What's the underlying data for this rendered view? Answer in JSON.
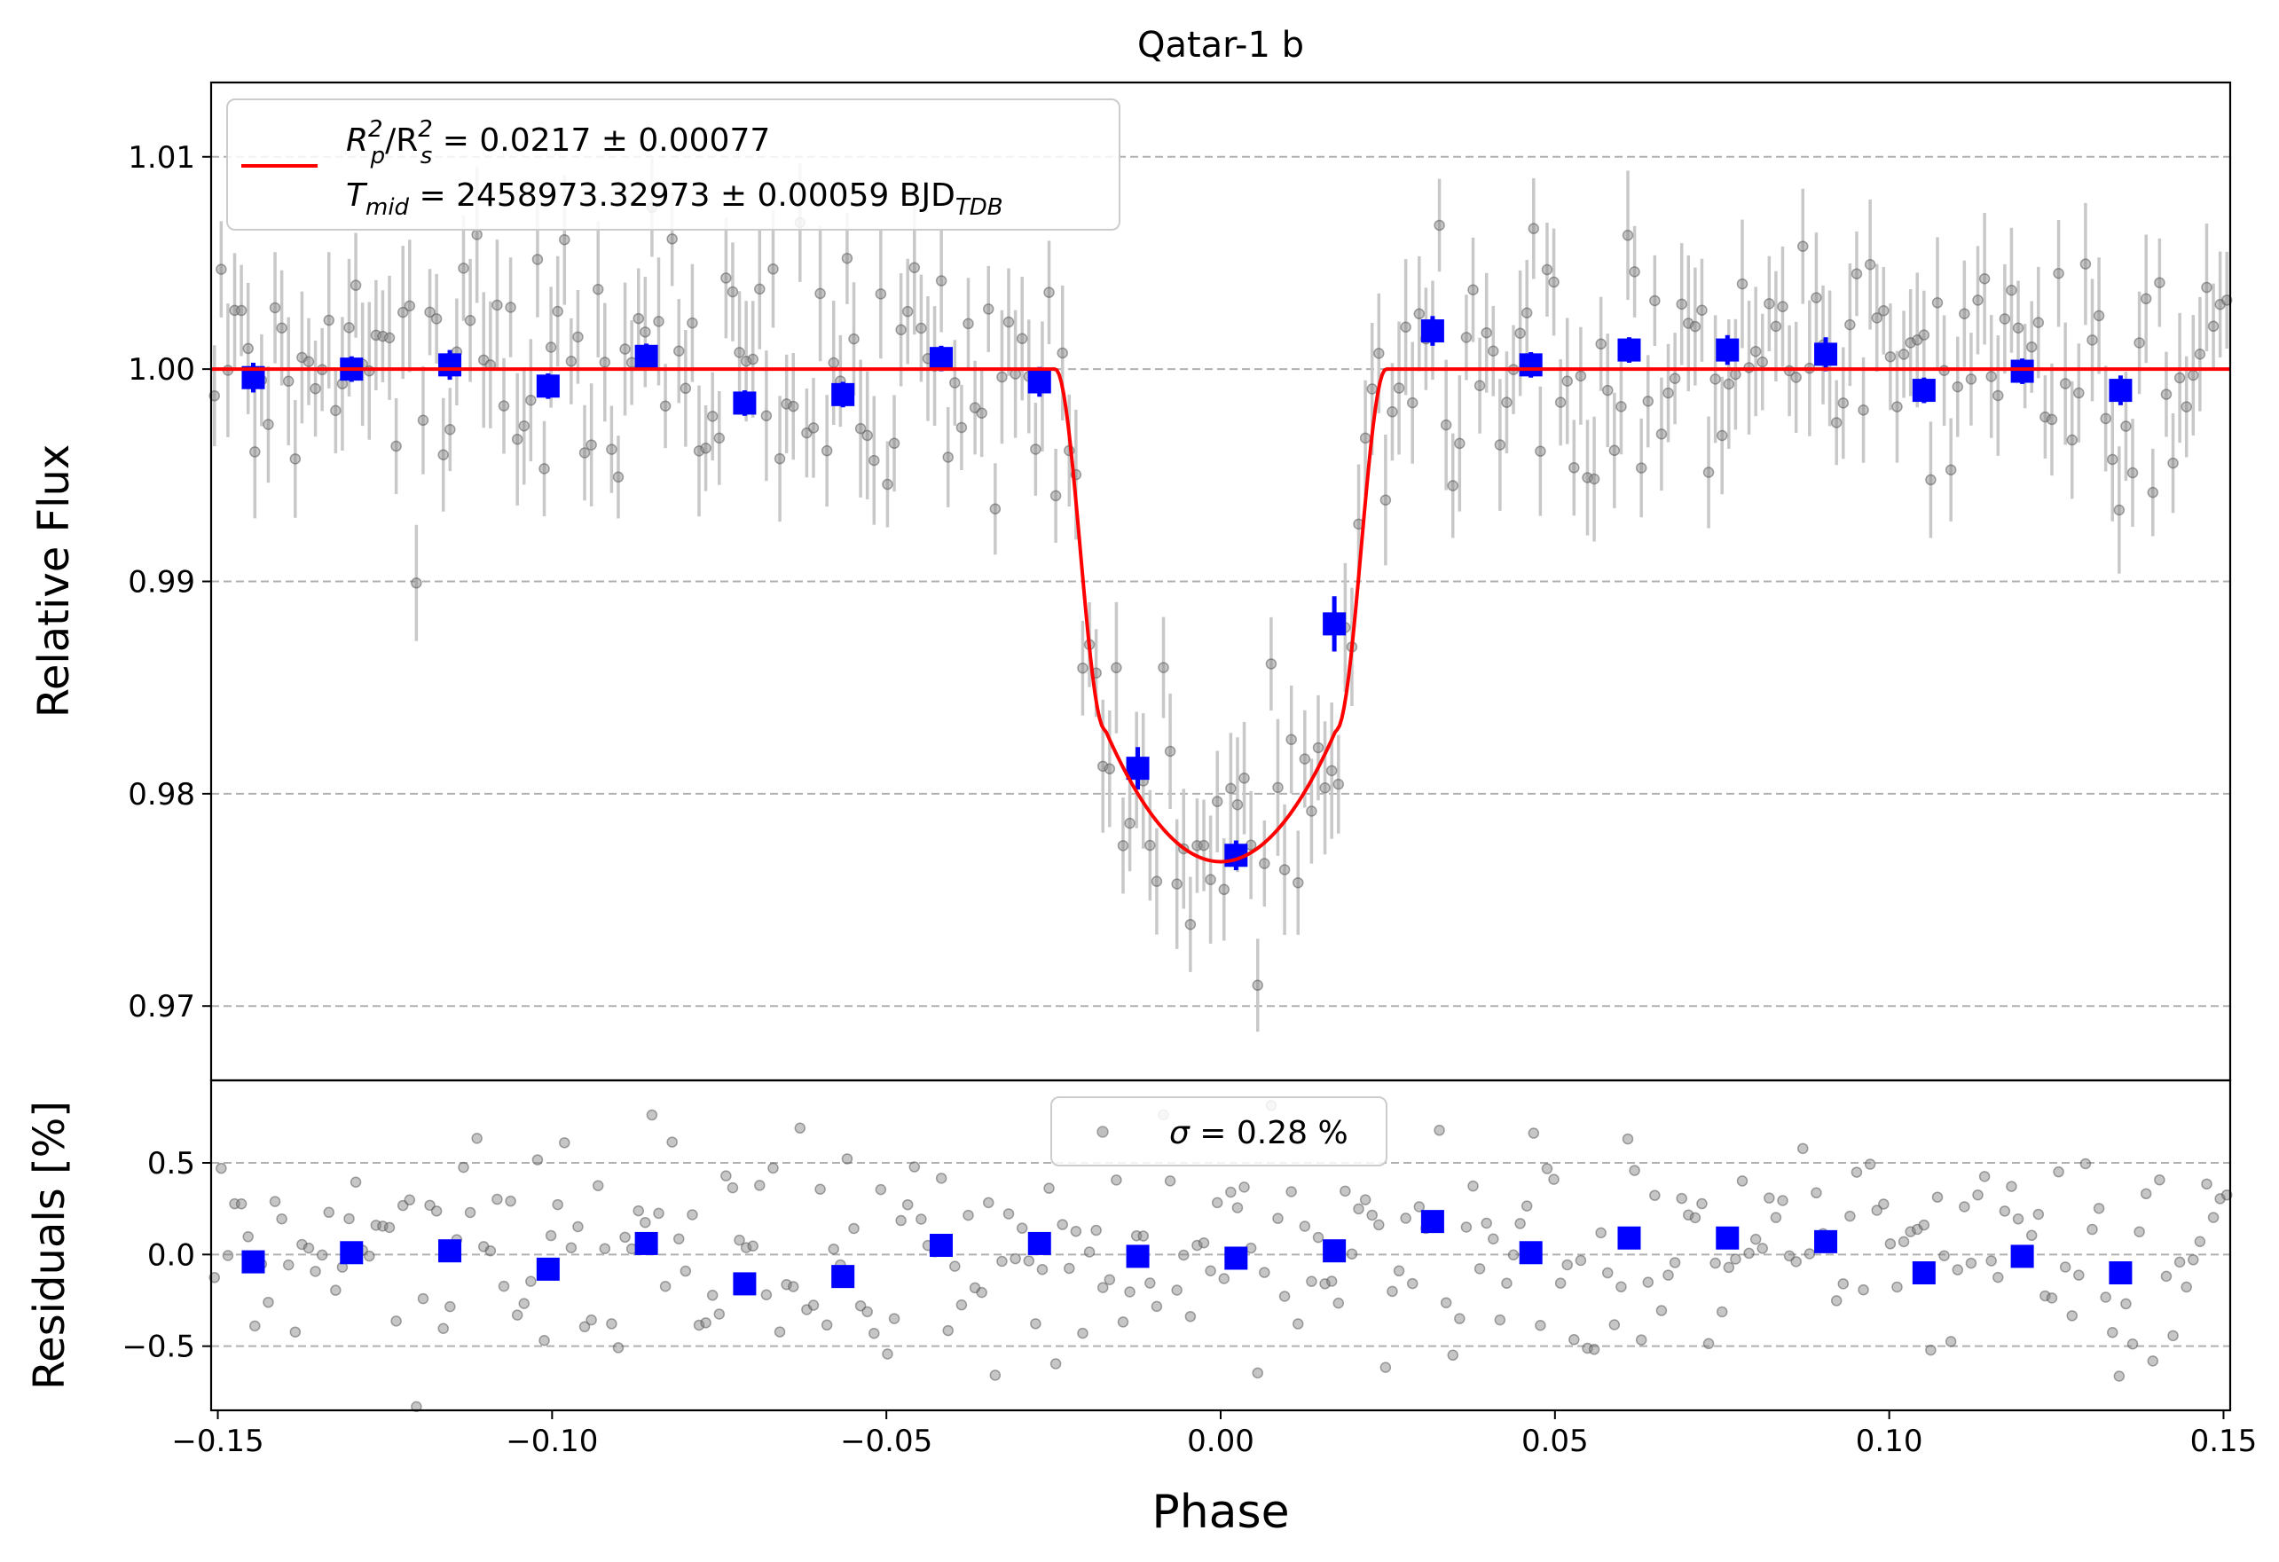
{
  "chart_data": [
    {
      "type": "scatter",
      "title": "Qatar-1 b",
      "xlabel": "",
      "ylabel": "Relative Flux",
      "xlim": [
        -0.151,
        0.151
      ],
      "ylim": [
        0.9665,
        1.0135
      ],
      "yticks": [
        0.97,
        0.98,
        0.99,
        1.0,
        1.01
      ],
      "ytick_labels": [
        "0.97",
        "0.98",
        "0.99",
        "1.00",
        "1.01"
      ],
      "grid": "y-dashed",
      "legend": {
        "placement": "top-left",
        "line1": {
          "prefix": "R",
          "sub1": "p",
          "sup1": "2",
          "mid": "/R",
          "sub2": "s",
          "sup2": "2",
          "suffix": " = 0.0217 ± 0.00077"
        },
        "line2": {
          "prefix": "T",
          "sub1": "mid",
          "mid": " = 2458973.32973 ± 0.00059 BJD",
          "sub2": "TDB"
        }
      },
      "model": {
        "name": "transit model",
        "color": "#ff0000",
        "baseline": 1.0,
        "depth": 0.0232,
        "t14": 0.0495,
        "t23": 0.0345
      },
      "binned": {
        "color": "#0000ff",
        "x": [
          -0.1447,
          -0.13,
          -0.1153,
          -0.1006,
          -0.0859,
          -0.0712,
          -0.0565,
          -0.0418,
          -0.0271,
          -0.0124,
          0.0023,
          0.017,
          0.0317,
          0.0464,
          0.0611,
          0.0758,
          0.0905,
          0.1052,
          0.1199,
          0.1346
        ],
        "y": [
          0.9996,
          1.0,
          1.0002,
          0.9992,
          1.0006,
          0.9984,
          0.9988,
          1.0005,
          0.9994,
          0.9812,
          0.9771,
          0.988,
          1.0018,
          1.0002,
          1.0009,
          1.0009,
          1.0007,
          0.999,
          0.9999,
          0.999
        ],
        "err": [
          0.0007,
          0.0006,
          0.0007,
          0.0006,
          0.0006,
          0.0006,
          0.0006,
          0.0006,
          0.0007,
          0.001,
          0.0007,
          0.0013,
          0.0007,
          0.0006,
          0.0006,
          0.0007,
          0.0008,
          0.0006,
          0.0006,
          0.0007
        ]
      },
      "raw": {
        "color": "#808080",
        "n_points": 300,
        "errorbar_color": "#c8c8c8",
        "typical_err": 0.0026,
        "scatter": 0.0028,
        "x_range": [
          -0.1505,
          0.1505
        ]
      }
    },
    {
      "type": "scatter",
      "xlabel": "Phase",
      "ylabel": "Residuals [%]",
      "xlim": [
        -0.151,
        0.151
      ],
      "ylim": [
        -0.85,
        0.95
      ],
      "yticks": [
        -0.5,
        0.0,
        0.5
      ],
      "ytick_labels": [
        "−0.5",
        "0.0",
        "0.5"
      ],
      "xticks": [
        -0.15,
        -0.1,
        -0.05,
        0.0,
        0.05,
        0.1,
        0.15
      ],
      "xtick_labels": [
        "−0.15",
        "−0.10",
        "−0.05",
        "0.00",
        "0.05",
        "0.10",
        "0.15"
      ],
      "grid": "y-dashed",
      "legend": {
        "placement": "top-center",
        "sym": "σ",
        "text": " = 0.28 %"
      },
      "binned": {
        "x": [
          -0.1447,
          -0.13,
          -0.1153,
          -0.1006,
          -0.0859,
          -0.0712,
          -0.0565,
          -0.0418,
          -0.0271,
          -0.0124,
          0.0023,
          0.017,
          0.0317,
          0.0464,
          0.0611,
          0.0758,
          0.0905,
          0.1052,
          0.1199,
          0.1346
        ],
        "y": [
          -0.04,
          0.01,
          0.02,
          -0.08,
          0.06,
          -0.16,
          -0.12,
          0.05,
          0.06,
          -0.01,
          -0.02,
          0.02,
          0.18,
          0.01,
          0.09,
          0.09,
          0.07,
          -0.1,
          -0.01,
          -0.1
        ]
      }
    }
  ]
}
